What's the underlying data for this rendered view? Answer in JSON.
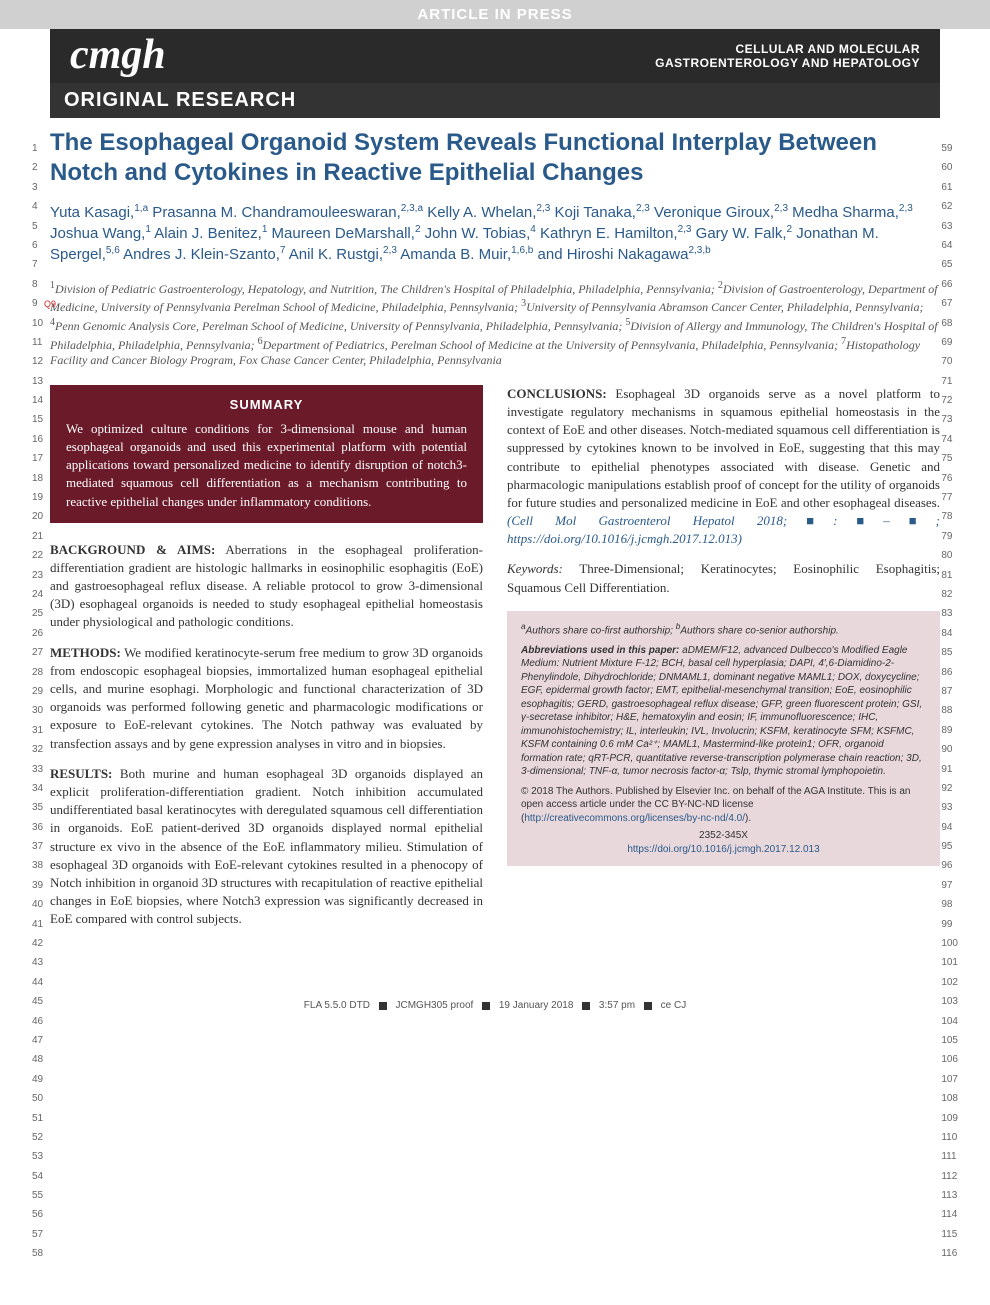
{
  "banner": "ARTICLE IN PRESS",
  "logo": "cmgh",
  "journal": {
    "line1": "CELLULAR AND MOLECULAR",
    "line2": "GASTROENTEROLOGY AND HEPATOLOGY"
  },
  "section": "ORIGINAL RESEARCH",
  "title": "The Esophageal Organoid System Reveals Functional Interplay Between Notch and Cytokines in Reactive Epithelial Changes",
  "q_tag": "Q9",
  "authors_html": "Yuta Kasagi,<sup>1,a</sup> Prasanna M. Chandramouleeswaran,<sup>2,3,a</sup> Kelly A. Whelan,<sup>2,3</sup> Koji Tanaka,<sup>2,3</sup> Veronique Giroux,<sup>2,3</sup> Medha Sharma,<sup>2,3</sup> Joshua Wang,<sup>1</sup> Alain J. Benitez,<sup>1</sup> Maureen DeMarshall,<sup>2</sup> John W. Tobias,<sup>4</sup> Kathryn E. Hamilton,<sup>2,3</sup> Gary W. Falk,<sup>2</sup> Jonathan M. Spergel,<sup>5,6</sup> Andres J. Klein-Szanto,<sup>7</sup> Anil K. Rustgi,<sup>2,3</sup> Amanda B. Muir,<sup>1,6,b</sup> and Hiroshi Nakagawa<sup>2,3,b</sup>",
  "affiliations_html": "<sup>1</sup>Division of Pediatric Gastroenterology, Hepatology, and Nutrition, The Children's Hospital of Philadelphia, Philadelphia, Pennsylvania; <sup>2</sup>Division of Gastroenterology, Department of Medicine, University of Pennsylvania Perelman School of Medicine, Philadelphia, Pennsylvania; <sup>3</sup>University of Pennsylvania Abramson Cancer Center, Philadelphia, Pennsylvania; <sup>4</sup>Penn Genomic Analysis Core, Perelman School of Medicine, University of Pennsylvania, Philadelphia, Pennsylvania; <sup>5</sup>Division of Allergy and Immunology, The Children's Hospital of Philadelphia, Philadelphia, Pennsylvania; <sup>6</sup>Department of Pediatrics, Perelman School of Medicine at the University of Pennsylvania, Philadelphia, Pennsylvania; <sup>7</sup>Histopathology Facility and Cancer Biology Program, Fox Chase Cancer Center, Philadelphia, Pennsylvania",
  "summary": {
    "title": "SUMMARY",
    "text": "We optimized culture conditions for 3-dimensional mouse and human esophageal organoids and used this experimental platform with potential applications toward personalized medicine to identify disruption of notch3-mediated squamous cell differentiation as a mechanism contributing to reactive epithelial changes under inflammatory conditions."
  },
  "abstract": {
    "background": {
      "head": "BACKGROUND & AIMS:",
      "text": " Aberrations in the esophageal proliferation-differentiation gradient are histologic hallmarks in eosinophilic esophagitis (EoE) and gastroesophageal reflux disease. A reliable protocol to grow 3-dimensional (3D) esophageal organoids is needed to study esophageal epithelial homeostasis under physiological and pathologic conditions."
    },
    "methods": {
      "head": "METHODS:",
      "text": " We modified keratinocyte-serum free medium to grow 3D organoids from endoscopic esophageal biopsies, immortalized human esophageal epithelial cells, and murine esophagi. Morphologic and functional characterization of 3D organoids was performed following genetic and pharmacologic modifications or exposure to EoE-relevant cytokines. The Notch pathway was evaluated by transfection assays and by gene expression analyses in vitro and in biopsies."
    },
    "results": {
      "head": "RESULTS:",
      "text": " Both murine and human esophageal 3D organoids displayed an explicit proliferation-differentiation gradient. Notch inhibition accumulated undifferentiated basal keratinocytes with deregulated squamous cell differentiation in organoids. EoE patient-derived 3D organoids displayed normal epithelial structure ex vivo in the absence of the EoE inflammatory milieu. Stimulation of esophageal 3D organoids with EoE-relevant cytokines resulted in a phenocopy of Notch inhibition in organoid 3D structures with recapitulation of reactive epithelial changes in EoE biopsies, where Notch3 expression was significantly decreased in EoE compared with control subjects."
    },
    "conclusions": {
      "head": "CONCLUSIONS:",
      "text": " Esophageal 3D organoids serve as a novel platform to investigate regulatory mechanisms in squamous epithelial homeostasis in the context of EoE and other diseases. Notch-mediated squamous cell differentiation is suppressed by cytokines known to be involved in EoE, suggesting that this may contribute to epithelial phenotypes associated with disease. Genetic and pharmacologic manipulations establish proof of concept for the utility of organoids for future studies and personalized medicine in EoE and other esophageal diseases. ",
      "citation": "(Cell Mol Gastroenterol Hepatol 2018;■:■–■; ",
      "doi": "https://doi.org/10.1016/j.jcmgh.2017.12.013",
      "closing": ")"
    }
  },
  "keywords": {
    "head": "Keywords:",
    "text": " Three-Dimensional; Keratinocytes; Eosinophilic Esophagitis; Squamous Cell Differentiation."
  },
  "footnote": {
    "authorship_html": "<sup>a</sup>Authors share co-first authorship; <sup>b</sup>Authors share co-senior authorship.",
    "abbrev_head": "Abbreviations used in this paper:",
    "abbrev_text": " aDMEM/F12, advanced Dulbecco's Modified Eagle Medium: Nutrient Mixture F-12; BCH, basal cell hyperplasia; DAPI, 4′,6-Diamidino-2-Phenylindole, Dihydrochloride; DNMAML1, dominant negative MAML1; DOX, doxycycline; EGF, epidermal growth factor; EMT, epithelial-mesenchymal transition; EoE, eosinophilic esophagitis; GERD, gastroesophageal reflux disease; GFP, green fluorescent protein; GSI, γ-secretase inhibitor; H&E, hematoxylin and eosin; IF, immunofluorescence; IHC, immunohistochemistry; IL, interleukin; IVL, Involucrin; KSFM, keratinocyte SFM; KSFMC, KSFM containing 0.6 mM Ca²⁺; MAML1, Mastermind-like protein1; OFR, organoid formation rate; qRT-PCR, quantitative reverse-transcription polymerase chain reaction; 3D, 3-dimensional; TNF-α, tumor necrosis factor-α; Tslp, thymic stromal lymphopoietin.",
    "copyright": "© 2018 The Authors. Published by Elsevier Inc. on behalf of the AGA Institute. This is an open access article under the CC BY-NC-ND license (",
    "license_link": "http://creativecommons.org/licenses/by-nc-nd/4.0/",
    "closing": ").",
    "issn": "2352-345X",
    "doi": "https://doi.org/10.1016/j.jcmgh.2017.12.013"
  },
  "line_numbers": {
    "left_start": 1,
    "left_end": 58,
    "right_start": 59,
    "right_end": 116
  },
  "footer": {
    "parts": [
      "FLA 5.5.0 DTD",
      "JCMGH305 proof",
      "19 January 2018",
      "3:57 pm",
      "ce CJ"
    ]
  },
  "colors": {
    "title_blue": "#2a5a8a",
    "summary_bg": "#6b1a2a",
    "footnote_bg": "#e8d8dc",
    "header_bg": "#2a2a2a",
    "banner_bg": "#d0d0d0",
    "q_red": "#d02a2a"
  }
}
